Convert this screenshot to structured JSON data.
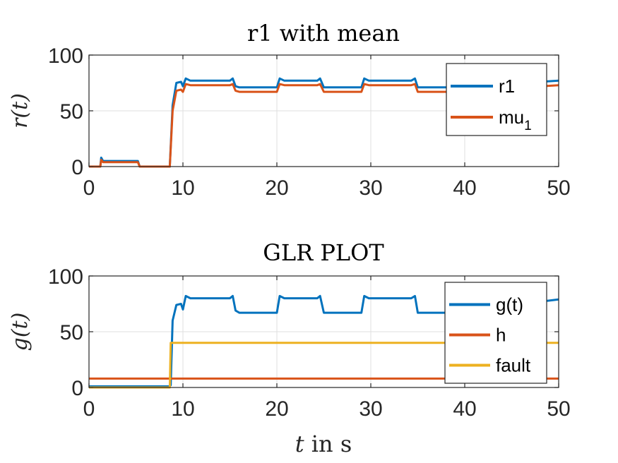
{
  "colors": {
    "series1": "#0072BD",
    "series2": "#D95319",
    "series3": "#EDB120"
  },
  "xlabel": {
    "italic": "t",
    "rest": " in s"
  },
  "chart_data": [
    {
      "type": "line",
      "title": "r1 with mean",
      "ylabel": "r(t)",
      "xlim": [
        0,
        50
      ],
      "ylim": [
        0,
        100
      ],
      "xticks": [
        0,
        10,
        20,
        30,
        40,
        50
      ],
      "yticks": [
        0,
        50,
        100
      ],
      "grid": true,
      "legend_position": "top-right",
      "series": [
        {
          "name": "r1",
          "legend_label": "r1",
          "color": "#0072BD",
          "x": [
            0,
            1.2,
            1.3,
            1.5,
            2,
            5.2,
            5.4,
            5.6,
            5.8,
            8.6,
            8.9,
            9.3,
            9.8,
            10,
            10.3,
            10.8,
            15,
            15.3,
            15.6,
            16,
            20,
            20.3,
            20.8,
            24.3,
            24.6,
            25,
            29,
            29.3,
            29.8,
            34.3,
            34.7,
            35,
            38.5,
            50
          ],
          "y": [
            0,
            0,
            8,
            5,
            5,
            5,
            0,
            0,
            0,
            0,
            55,
            75,
            76,
            72,
            79,
            77,
            77,
            79,
            72,
            71,
            71,
            79,
            77,
            77,
            79,
            71,
            71,
            79,
            77,
            77,
            79,
            71,
            71,
            77
          ]
        },
        {
          "name": "mu_1",
          "legend_label": "mu",
          "legend_sub": "1",
          "color": "#D95319",
          "x": [
            0,
            1.2,
            1.3,
            1.5,
            2,
            5.2,
            5.4,
            5.6,
            5.8,
            8.6,
            8.9,
            9.3,
            9.8,
            10,
            10.3,
            10.8,
            15,
            15.3,
            15.6,
            16,
            20,
            20.3,
            20.8,
            24.3,
            24.6,
            25,
            29,
            29.3,
            29.8,
            34.3,
            34.7,
            35,
            38.5,
            50
          ],
          "y": [
            0,
            0,
            6,
            4,
            4,
            4,
            0,
            0,
            0,
            0,
            50,
            68,
            69,
            67,
            74,
            73,
            73,
            74,
            68,
            67,
            67,
            74,
            73,
            73,
            74,
            67,
            67,
            74,
            73,
            73,
            74,
            67,
            67,
            73
          ]
        }
      ]
    },
    {
      "type": "line",
      "title": "GLR PLOT",
      "ylabel": "g(t)",
      "xlim": [
        0,
        50
      ],
      "ylim": [
        0,
        100
      ],
      "xticks": [
        0,
        10,
        20,
        30,
        40,
        50
      ],
      "yticks": [
        0,
        50,
        100
      ],
      "grid": true,
      "legend_position": "top-right",
      "series": [
        {
          "name": "g(t)",
          "legend_label": "g(t)",
          "color": "#0072BD",
          "x": [
            0,
            8.5,
            8.7,
            8.9,
            9.3,
            9.8,
            10,
            10.3,
            10.8,
            15,
            15.3,
            15.6,
            16,
            20,
            20.3,
            20.8,
            24.3,
            24.6,
            25,
            29,
            29.3,
            29.8,
            34.3,
            34.7,
            35,
            38.5,
            50
          ],
          "y": [
            1,
            1,
            2,
            60,
            74,
            75,
            70,
            82,
            80,
            80,
            82,
            69,
            67,
            67,
            82,
            80,
            80,
            82,
            67,
            67,
            82,
            80,
            80,
            82,
            67,
            67,
            79
          ]
        },
        {
          "name": "h",
          "legend_label": "h",
          "color": "#D95319",
          "x": [
            0,
            50
          ],
          "y": [
            8,
            8
          ]
        },
        {
          "name": "fault",
          "legend_label": "fault",
          "color": "#EDB120",
          "x": [
            0,
            8.6,
            8.7,
            50
          ],
          "y": [
            0,
            0,
            40,
            40
          ]
        }
      ]
    }
  ]
}
